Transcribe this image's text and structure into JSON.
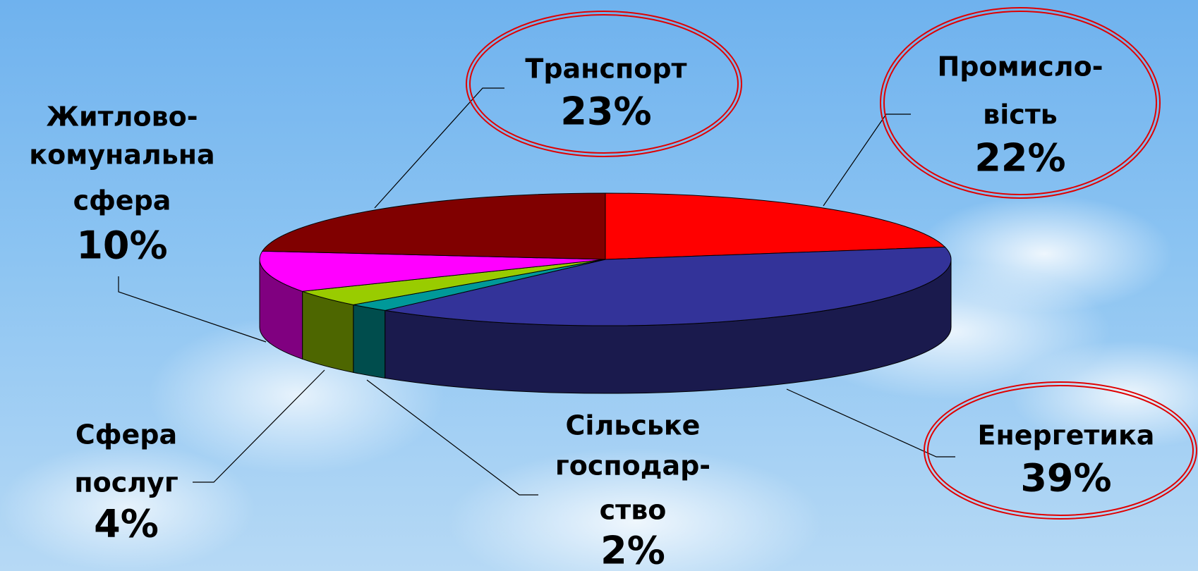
{
  "chart_data": {
    "type": "pie3d",
    "categories": [
      [
        "Промисло-",
        "вість"
      ],
      [
        "Енергетика"
      ],
      [
        "Сільське",
        "господар-",
        "ство"
      ],
      [
        "Сфера",
        "послуг"
      ],
      [
        "Житлово-",
        "комунальна",
        "сфера"
      ],
      [
        "Транспорт"
      ]
    ],
    "values": [
      22,
      39,
      2,
      4,
      10,
      23
    ],
    "value_labels": [
      "22%",
      "39%",
      "2%",
      "4%",
      "10%",
      "23%"
    ],
    "colors": [
      "#ff0000",
      "#333399",
      "#009999",
      "#99cc00",
      "#ff00ff",
      "#800000"
    ]
  }
}
